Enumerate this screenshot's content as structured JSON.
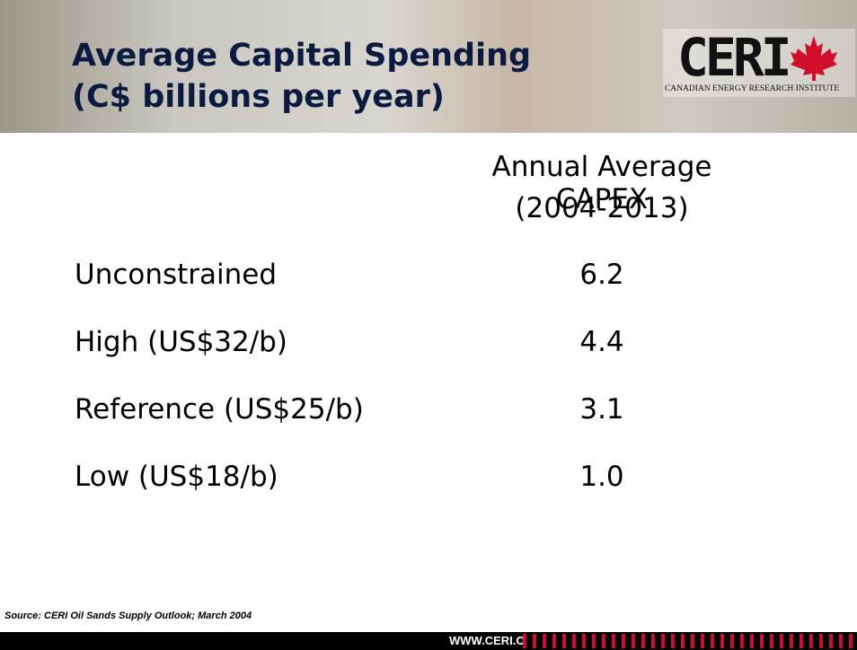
{
  "header": {
    "title_lines": [
      "Average Capital Spending",
      "(C$ billions per year)"
    ],
    "logo": {
      "name": "CERI",
      "subtitle": "CANADIAN ENERGY RESEARCH INSTITUTE"
    }
  },
  "table": {
    "column_header": [
      "Annual Average CAPEX",
      "(2004-2013)"
    ],
    "rows": [
      [
        "Unconstrained",
        "6.2"
      ],
      [
        "High (US$32/b)",
        "4.4"
      ],
      [
        "Reference (US$25/b)",
        "3.1"
      ],
      [
        "Low (US$18/b)",
        "1.0"
      ]
    ]
  },
  "source": "Source: CERI Oil Sands Supply Outlook; March 2004",
  "footer": {
    "url": "WWW.CERI.CA"
  }
}
